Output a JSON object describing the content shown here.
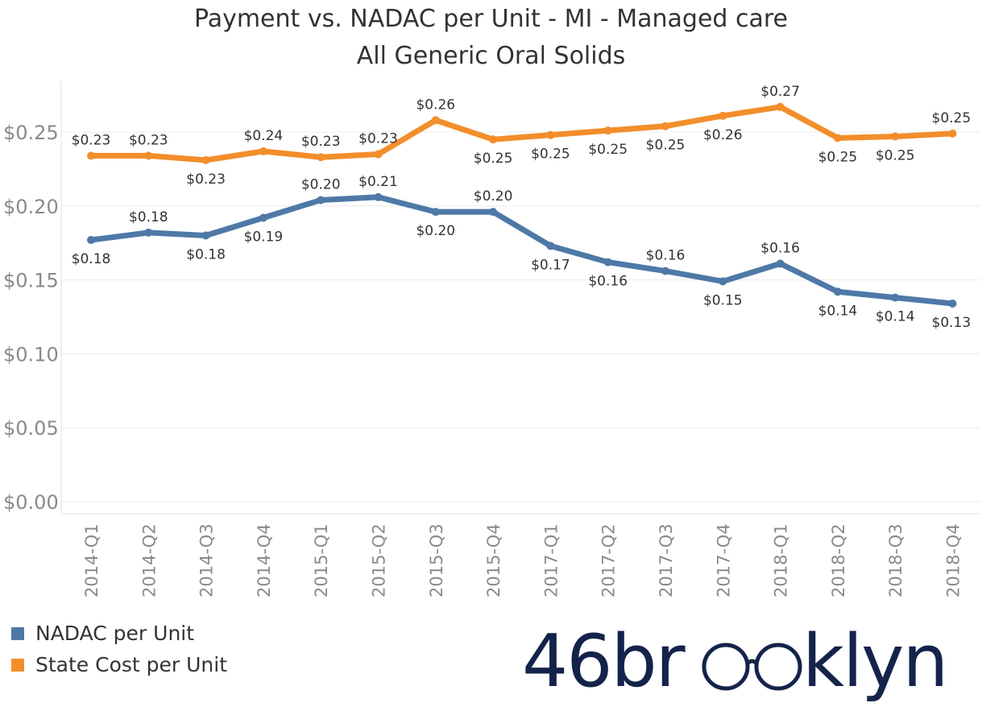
{
  "title_line1": "Payment vs. NADAC per Unit - MI - Managed care",
  "title_line2": "All Generic Oral Solids",
  "legend": [
    {
      "label": "NADAC per Unit",
      "color": "#4e79a7"
    },
    {
      "label": "State Cost per Unit",
      "color": "#f28e2b"
    }
  ],
  "logo": {
    "before": "46br",
    "after": "klyn",
    "glasses_icon": "glasses-icon"
  },
  "chart_data": {
    "type": "line",
    "title": "Payment vs. NADAC per Unit - MI - Managed care",
    "subtitle": "All Generic Oral Solids",
    "categories": [
      "2014-Q1",
      "2014-Q2",
      "2014-Q3",
      "2014-Q4",
      "2015-Q1",
      "2015-Q2",
      "2015-Q3",
      "2015-Q4",
      "2017-Q1",
      "2017-Q2",
      "2017-Q3",
      "2017-Q4",
      "2018-Q1",
      "2018-Q2",
      "2018-Q3",
      "2018-Q4"
    ],
    "ylim": [
      0,
      0.28
    ],
    "yticks": [
      0.0,
      0.05,
      0.1,
      0.15,
      0.2,
      0.25
    ],
    "ytick_labels": [
      "$0.00",
      "$0.05",
      "$0.10",
      "$0.15",
      "$0.20",
      "$0.25"
    ],
    "grid": true,
    "legend_position": "bottom-left",
    "series": [
      {
        "name": "NADAC per Unit",
        "color": "#4e79a7",
        "values": [
          0.177,
          0.182,
          0.18,
          0.192,
          0.204,
          0.206,
          0.196,
          0.196,
          0.173,
          0.162,
          0.156,
          0.149,
          0.161,
          0.142,
          0.138,
          0.134
        ],
        "labels": [
          "$0.18",
          "$0.18",
          "$0.18",
          "$0.19",
          "$0.20",
          "$0.21",
          "$0.20",
          "$0.20",
          "$0.17",
          "$0.16",
          "$0.16",
          "$0.15",
          "$0.16",
          "$0.14",
          "$0.14",
          "$0.13"
        ],
        "label_pos": [
          "below",
          "above",
          "below",
          "below",
          "above",
          "above",
          "below",
          "above",
          "below",
          "below",
          "above",
          "below",
          "above",
          "below",
          "below",
          "below"
        ]
      },
      {
        "name": "State Cost per Unit",
        "color": "#f28e2b",
        "values": [
          0.234,
          0.234,
          0.231,
          0.237,
          0.233,
          0.235,
          0.258,
          0.245,
          0.248,
          0.251,
          0.254,
          0.261,
          0.267,
          0.246,
          0.247,
          0.249
        ],
        "labels": [
          "$0.23",
          "$0.23",
          "$0.23",
          "$0.24",
          "$0.23",
          "$0.23",
          "$0.26",
          "$0.25",
          "$0.25",
          "$0.25",
          "$0.25",
          "$0.26",
          "$0.27",
          "$0.25",
          "$0.25",
          "$0.25"
        ],
        "label_pos": [
          "above",
          "above",
          "below",
          "above",
          "above",
          "above",
          "above",
          "below",
          "below",
          "below",
          "below",
          "below",
          "above",
          "below",
          "below",
          "above"
        ]
      }
    ]
  }
}
